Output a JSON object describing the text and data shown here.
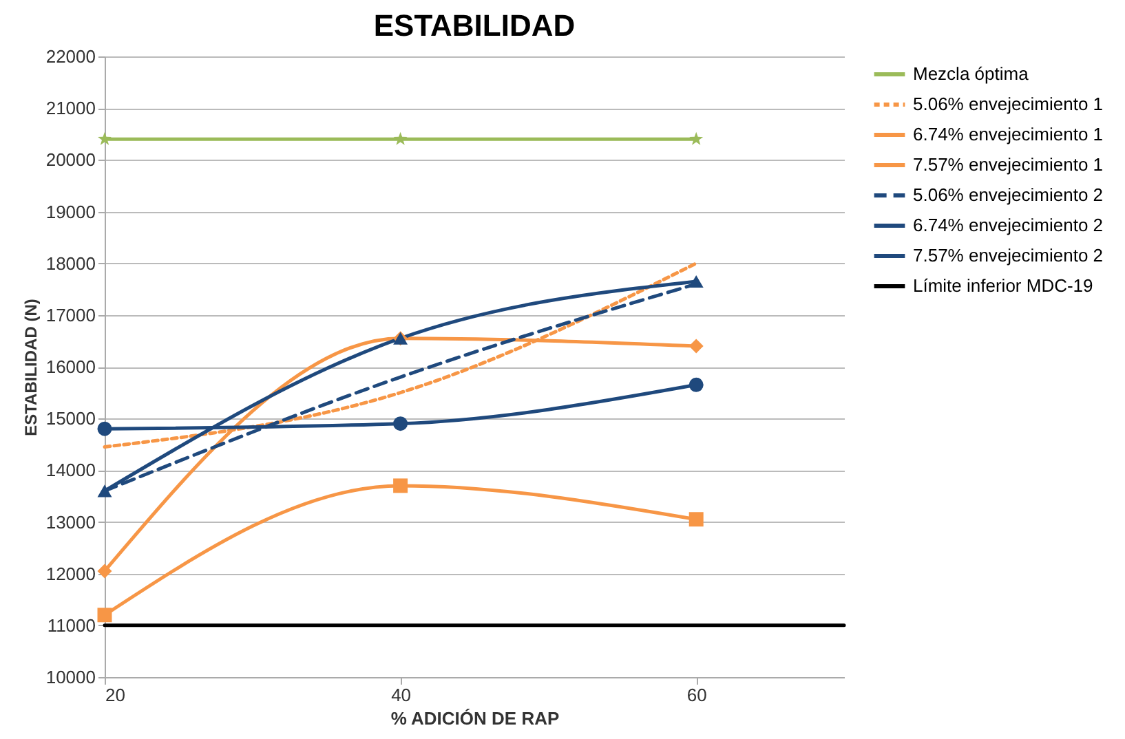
{
  "chart_data": {
    "type": "line",
    "title": "ESTABILIDAD",
    "xlabel": "% ADICIÓN DE RAP",
    "ylabel": "ESTABILIDAD (N)",
    "x": [
      20,
      40,
      60
    ],
    "xlim": [
      20,
      70
    ],
    "xticks": [
      20,
      40,
      60
    ],
    "ylim": [
      10000,
      22000
    ],
    "yticks": [
      10000,
      11000,
      12000,
      13000,
      14000,
      15000,
      16000,
      17000,
      18000,
      19000,
      20000,
      21000,
      22000
    ],
    "grid": "y",
    "legend": "right",
    "series": [
      {
        "name": "Mezcla óptima",
        "color": "#9bbb59",
        "values": [
          20400,
          20400,
          20400
        ],
        "marker": "star",
        "line_style": "solid"
      },
      {
        "name": "5.06% envejecimiento 1",
        "color": "#f79646",
        "values": [
          14450,
          15500,
          18000
        ],
        "marker": "none",
        "line_style": "dotted"
      },
      {
        "name": "6.74% envejecimiento 1",
        "color": "#f79646",
        "values": [
          12050,
          16550,
          16400
        ],
        "marker": "diamond",
        "line_style": "solid"
      },
      {
        "name": "7.57% envejecimiento 1",
        "color": "#f79646",
        "values": [
          11200,
          13700,
          13050
        ],
        "marker": "square",
        "line_style": "solid"
      },
      {
        "name": "5.06% envejecimiento 2",
        "color": "#1f497d",
        "values": [
          13600,
          15800,
          17600
        ],
        "marker": "none",
        "line_style": "dashed"
      },
      {
        "name": "6.74% envejecimiento 2",
        "color": "#1f497d",
        "values": [
          13600,
          16550,
          17650
        ],
        "marker": "triangle",
        "line_style": "solid"
      },
      {
        "name": "7.57% envejecimiento 2",
        "color": "#1f497d",
        "values": [
          14800,
          14900,
          15650
        ],
        "marker": "circle",
        "line_style": "solid"
      },
      {
        "name": "Límite inferior MDC-19",
        "color": "#000000",
        "x": [
          20,
          70
        ],
        "values": [
          11000,
          11000
        ],
        "marker": "none",
        "line_style": "solid"
      }
    ]
  }
}
